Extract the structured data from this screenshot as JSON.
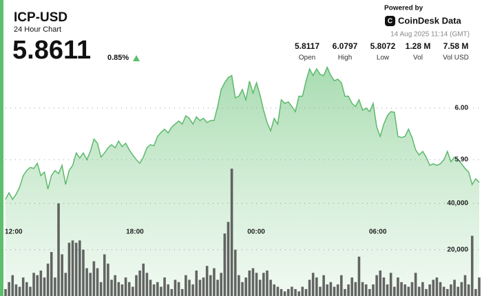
{
  "header": {
    "title": "ICP-USD",
    "subtitle": "24 Hour Chart",
    "price": "5.8611",
    "change": "0.85%",
    "powered_by": "Powered by",
    "brand": "CoinDesk Data",
    "timestamp": "14 Aug 2025 11:14 (GMT)",
    "stats": [
      {
        "value": "5.8117",
        "label": "Open"
      },
      {
        "value": "6.0797",
        "label": "High"
      },
      {
        "value": "5.8072",
        "label": "Low"
      },
      {
        "value": "1.28 M",
        "label": "Vol"
      },
      {
        "value": "7.58 M",
        "label": "Vol USD"
      }
    ]
  },
  "chart_data": {
    "type": "line",
    "xlim": [
      0,
      134
    ],
    "xticks": [
      {
        "value": 2.3,
        "label": "12:00"
      },
      {
        "value": 36.6,
        "label": "18:00"
      },
      {
        "value": 70.9,
        "label": "00:00"
      },
      {
        "value": 105.3,
        "label": "06:00"
      }
    ],
    "ylim": [
      5.636,
      6.1293
    ],
    "yticks": [
      {
        "value": 5.9,
        "label": "5.90"
      },
      {
        "value": 6,
        "label": "6.00"
      }
    ],
    "y2lim": [
      0,
      110000
    ],
    "y2ticks": [
      {
        "value": 20000,
        "label": "20,000"
      },
      {
        "value": 40000,
        "label": "40,000"
      }
    ],
    "grid": true,
    "series": [
      {
        "color": "#5cb96b",
        "values": [
          5.823,
          5.836,
          5.823,
          5.833,
          5.847,
          5.869,
          5.879,
          5.885,
          5.883,
          5.893,
          5.869,
          5.876,
          5.843,
          5.869,
          5.879,
          5.873,
          5.889,
          5.852,
          5.879,
          5.889,
          5.913,
          5.903,
          5.913,
          5.9,
          5.916,
          5.94,
          5.932,
          5.905,
          5.913,
          5.923,
          5.929,
          5.923,
          5.936,
          5.925,
          5.932,
          5.919,
          5.909,
          5.9,
          5.893,
          5.905,
          5.923,
          5.929,
          5.927,
          5.945,
          5.953,
          5.959,
          5.952,
          5.963,
          5.969,
          5.975,
          5.969,
          5.985,
          5.98,
          5.969,
          5.983,
          5.976,
          5.98,
          5.972,
          5.976,
          5.976,
          6.003,
          6.036,
          6.049,
          6.059,
          6.063,
          6.02,
          6.023,
          6.036,
          6.016,
          6.052,
          6.029,
          6.049,
          6.025,
          5.996,
          5.972,
          5.956,
          5.98,
          5.969,
          6.016,
          6.009,
          6.012,
          6.003,
          5.993,
          6.023,
          6.023,
          6.052,
          6.076,
          6.063,
          6.076,
          6.065,
          6.063,
          6.079,
          6.063,
          6.053,
          6.056,
          6.049,
          6.023,
          6.023,
          6.009,
          6.003,
          6.016,
          5.996,
          6.0,
          5.993,
          6.009,
          5.963,
          5.945,
          5.969,
          5.985,
          5.993,
          5.992,
          5.945,
          5.943,
          5.945,
          5.959,
          5.943,
          5.919,
          5.909,
          5.916,
          5.905,
          5.889,
          5.892,
          5.889,
          5.892,
          5.9,
          5.916,
          5.896,
          5.905,
          5.9,
          5.892,
          5.883,
          5.876,
          5.852,
          5.863,
          5.856
        ]
      },
      {
        "color": "#4a4a4a",
        "axis": "y2",
        "type": "bar",
        "values": [
          3000,
          6000,
          9000,
          5000,
          4000,
          8000,
          6000,
          4000,
          10000,
          9000,
          11000,
          8000,
          14000,
          19000,
          8000,
          40000,
          18000,
          10000,
          23000,
          24000,
          23000,
          24000,
          20000,
          12000,
          10000,
          15000,
          12000,
          6000,
          18000,
          14000,
          7000,
          9000,
          6000,
          5000,
          8000,
          6000,
          4000,
          9000,
          11000,
          14000,
          10000,
          7000,
          5000,
          6000,
          4000,
          8000,
          5000,
          3000,
          7000,
          6000,
          3000,
          9000,
          7000,
          5000,
          11000,
          7000,
          8000,
          13000,
          9000,
          12000,
          7000,
          10000,
          27000,
          32000,
          55000,
          20000,
          9000,
          6000,
          8000,
          11000,
          12000,
          10000,
          7000,
          10000,
          11000,
          7000,
          5000,
          4000,
          3000,
          2000,
          3000,
          4000,
          3000,
          2000,
          4000,
          3000,
          7000,
          10000,
          8000,
          4000,
          9000,
          5000,
          6000,
          4000,
          5000,
          9000,
          3000,
          5000,
          8000,
          6000,
          17000,
          6000,
          5000,
          3000,
          5000,
          9000,
          11000,
          8000,
          5000,
          10000,
          4000,
          8000,
          6000,
          5000,
          4000,
          6000,
          10000,
          4000,
          6000,
          3000,
          5000,
          7000,
          8000,
          6000,
          4000,
          3000,
          5000,
          7000,
          4000,
          6000,
          9000,
          5000,
          26000,
          3000,
          8000
        ]
      }
    ]
  }
}
